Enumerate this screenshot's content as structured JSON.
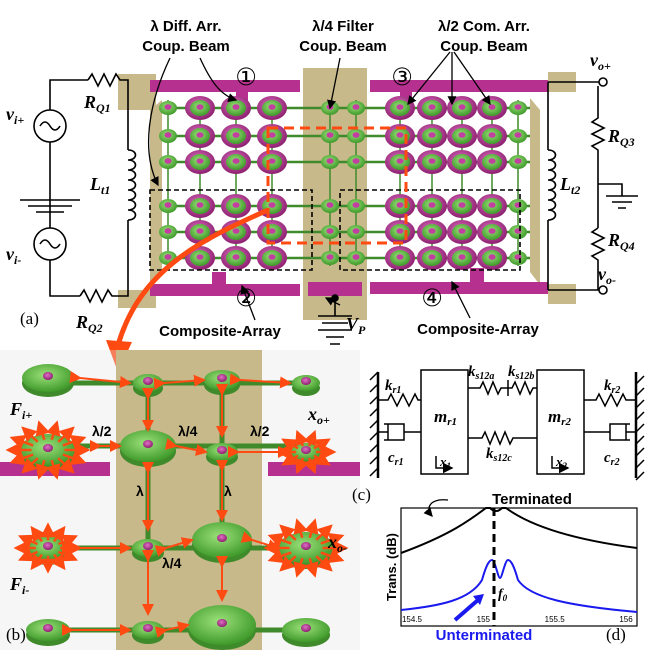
{
  "colors": {
    "pad": "#c8b98a",
    "beam": "#b5308f",
    "node": "#6cc04a",
    "nodeDark": "#3f8a2a",
    "magenta": "#b5308f",
    "arrow": "#ff4a12",
    "unterm": "#1a1aee"
  },
  "panel_a": {
    "label": "(a)",
    "callout_1": "λ Diff. Arr.",
    "callout_1b": "Coup. Beam",
    "callout_2": "λ/4 Filter",
    "callout_2b": "Coup. Beam",
    "callout_3": "λ/2 Com. Arr.",
    "callout_3b": "Coup. Beam",
    "num1": "①",
    "num2": "②",
    "num3": "③",
    "num4": "④",
    "composite_left": "Composite-Array",
    "composite_right": "Composite-Array",
    "vip": "v",
    "vip_sub": "i+",
    "vim": "v",
    "vim_sub": "i-",
    "rq1": "R",
    "rq1_sub": "Q1",
    "rq2": "R",
    "rq2_sub": "Q2",
    "rq3": "R",
    "rq3_sub": "Q3",
    "rq4": "R",
    "rq4_sub": "Q4",
    "lt1": "L",
    "lt1_sub": "t1",
    "lt2": "L",
    "lt2_sub": "t2",
    "vop": "v",
    "vop_sub": "o+",
    "vom": "v",
    "vom_sub": "o-",
    "vp": "V",
    "vp_sub": "P"
  },
  "panel_b": {
    "label": "(b)",
    "fip": "F",
    "fip_sub": "i+",
    "fim": "F",
    "fim_sub": "i-",
    "xop": "x",
    "xop_sub": "o+",
    "xom": "x",
    "xom_sub": "o-",
    "half1": "λ/2",
    "quarter1": "λ/4",
    "half2": "λ/2",
    "lambda1": "λ",
    "lambda2": "λ",
    "quarter2": "λ/4"
  },
  "panel_c": {
    "label": "(c)",
    "kr1": "k",
    "kr1_sub": "r1",
    "kr2": "k",
    "kr2_sub": "r2",
    "ks12a": "k",
    "ks12a_sub": "s12a",
    "ks12b": "k",
    "ks12b_sub": "s12b",
    "ks12c": "k",
    "ks12c_sub": "s12c",
    "mr1": "m",
    "mr1_sub": "r1",
    "mr2": "m",
    "mr2_sub": "r2",
    "cr1": "c",
    "cr1_sub": "r1",
    "cr2": "c",
    "cr2_sub": "r2",
    "x1": "x",
    "x1_sub": "1",
    "x2": "x",
    "x2_sub": "2"
  },
  "panel_d": {
    "label": "(d)",
    "terminated": "Terminated",
    "unterminated": "Unterminated",
    "ylabel": "Trans. (dB)",
    "f0": "f",
    "f0_sub": "0",
    "xticks": [
      "154.5",
      "155",
      "155.5",
      "156"
    ]
  }
}
